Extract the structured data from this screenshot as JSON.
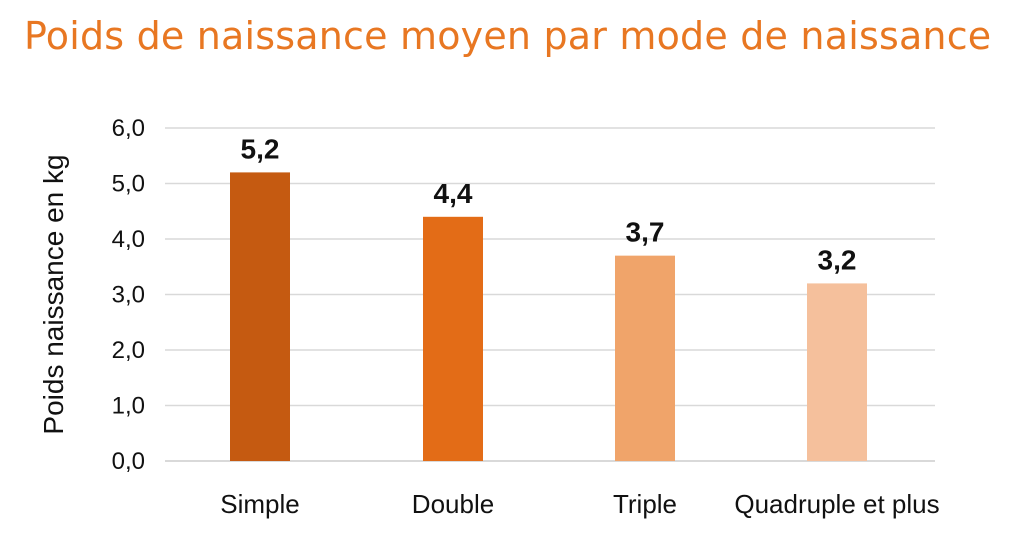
{
  "chart_data": {
    "type": "bar",
    "title": "Poids de naissance moyen par mode de naissance",
    "ylabel": "Poids naissance en kg",
    "xlabel": "",
    "categories": [
      "Simple",
      "Double",
      "Triple",
      "Quadruple et plus"
    ],
    "values": [
      5.2,
      4.4,
      3.7,
      3.2
    ],
    "value_labels": [
      "5,2",
      "4,4",
      "3,7",
      "3,2"
    ],
    "yticks": [
      "0,0",
      "1,0",
      "2,0",
      "3,0",
      "4,0",
      "5,0",
      "6,0"
    ],
    "ylim": [
      0,
      6
    ],
    "grid": true,
    "legend": "none",
    "colors": [
      "#C55A11",
      "#E36C17",
      "#F0A46A",
      "#F5C09C"
    ],
    "title_color": "#E87722",
    "grid_color": "#D9D9D9"
  }
}
